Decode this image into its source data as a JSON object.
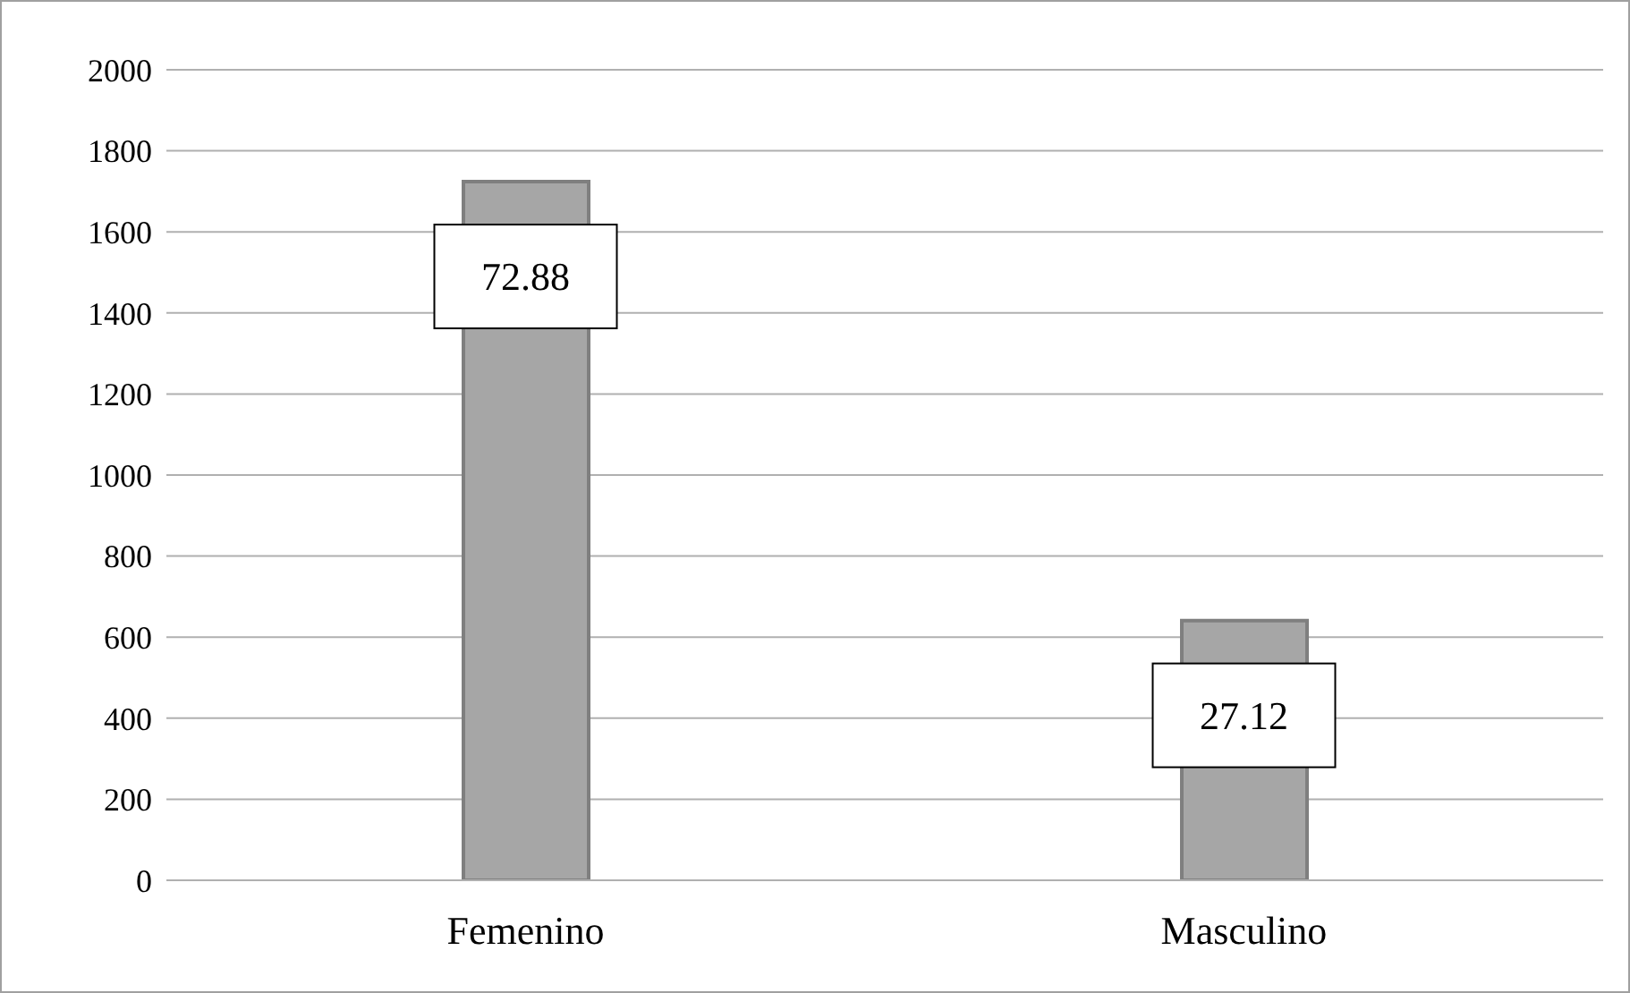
{
  "chart_data": {
    "type": "bar",
    "categories": [
      "Femenino",
      "Masculino"
    ],
    "values": [
      1724,
      641
    ],
    "color": "#a6a6a6",
    "annotations": [
      "72.88",
      "27.12"
    ],
    "ylim": [
      0,
      2000
    ],
    "yticks": [
      0,
      200,
      400,
      600,
      800,
      1000,
      1200,
      1400,
      1600,
      1800,
      2000
    ],
    "grid": "y",
    "legend": false
  }
}
